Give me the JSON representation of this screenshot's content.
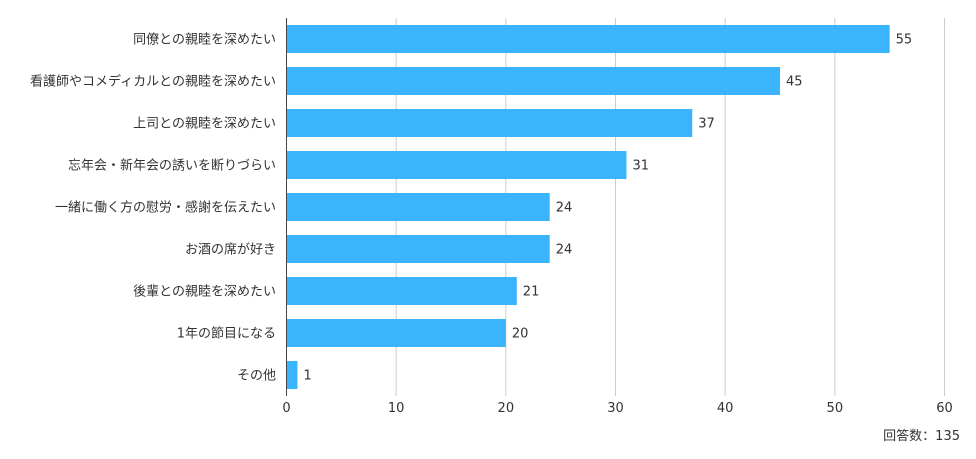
{
  "chart_data": {
    "type": "bar",
    "orientation": "horizontal",
    "categories": [
      "同僚との親睦を深めたい",
      "看護師やコメディカルとの親睦を深めたい",
      "上司との親睦を深めたい",
      "忘年会・新年会の誘いを断りづらい",
      "一緒に働く方の慰労・感謝を伝えたい",
      "お酒の席が好き",
      "後輩との親睦を深めたい",
      "1年の節目になる",
      "その他"
    ],
    "values": [
      55,
      45,
      37,
      31,
      24,
      24,
      21,
      20,
      1
    ],
    "xlim": [
      0,
      60
    ],
    "xticks": [
      0,
      10,
      20,
      30,
      40,
      50,
      60
    ],
    "grid": true,
    "bar_color": "#3ab4fc",
    "note": "回答数：135"
  }
}
